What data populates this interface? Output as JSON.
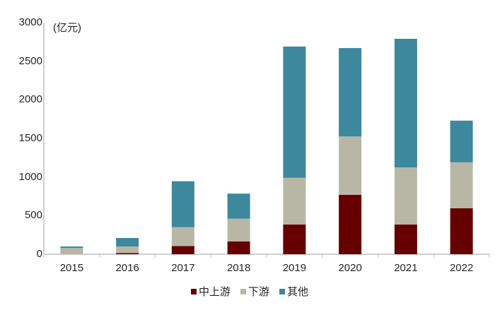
{
  "chart_data": {
    "type": "bar",
    "stacked": true,
    "title": "",
    "unit_label": "(亿元)",
    "xlabel": "",
    "ylabel": "(亿元)",
    "ylim": [
      0,
      3000
    ],
    "yticks": [
      0,
      500,
      1000,
      1500,
      2000,
      2500,
      3000
    ],
    "categories": [
      "2015",
      "2016",
      "2017",
      "2018",
      "2019",
      "2020",
      "2021",
      "2022"
    ],
    "series": [
      {
        "name": "中上游",
        "color": "#660000",
        "values": [
          0,
          15,
          105,
          165,
          385,
          770,
          385,
          595
        ]
      },
      {
        "name": "下游",
        "color": "#B8B7A5",
        "values": [
          80,
          85,
          245,
          295,
          605,
          755,
          740,
          595
        ]
      },
      {
        "name": "其他",
        "color": "#3D889C",
        "values": [
          20,
          110,
          595,
          325,
          1700,
          1145,
          1665,
          540
        ]
      }
    ],
    "totals": [
      100,
      210,
      945,
      785,
      2690,
      2670,
      2790,
      1730
    ],
    "grid": false,
    "legend_position": "bottom"
  },
  "colors": {
    "axis": "#BFBFBF",
    "text": "#262626"
  }
}
